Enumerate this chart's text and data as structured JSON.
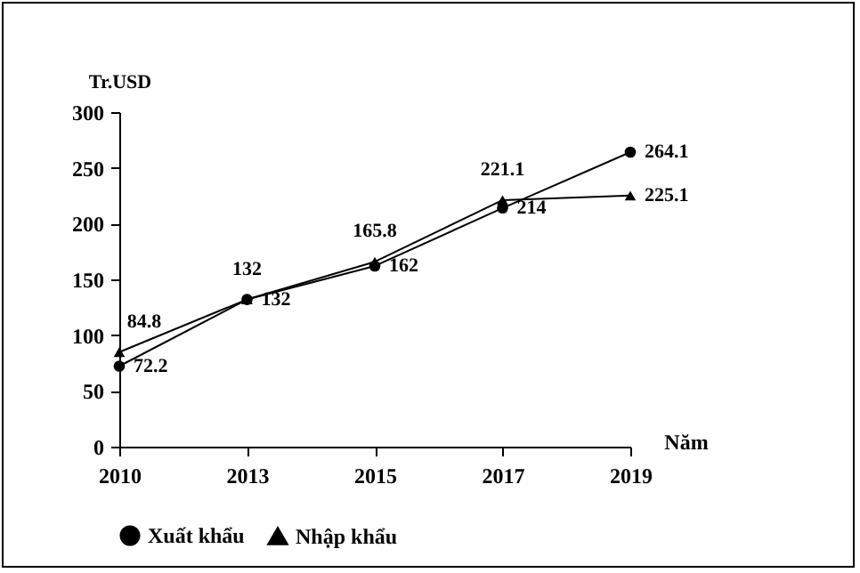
{
  "chart_data": {
    "type": "line",
    "ylabel": "Tr.USD",
    "xlabel": "Năm",
    "categories": [
      "2010",
      "2013",
      "2015",
      "2017",
      "2019"
    ],
    "series": [
      {
        "name": "Xuất khẩu",
        "color": "#000000",
        "marker": "circle",
        "values": [
          72.2,
          132,
          162,
          214,
          264.1
        ]
      },
      {
        "name": "Nhập khẩu",
        "color": "#000000",
        "marker": "triangle",
        "values": [
          84.8,
          132,
          165.8,
          221.1,
          225.1
        ]
      }
    ],
    "ylim": [
      0,
      300
    ],
    "yticks": [
      0,
      50,
      100,
      150,
      200,
      250,
      300
    ],
    "grid": false,
    "legend": "bottom",
    "data_labels": true
  }
}
